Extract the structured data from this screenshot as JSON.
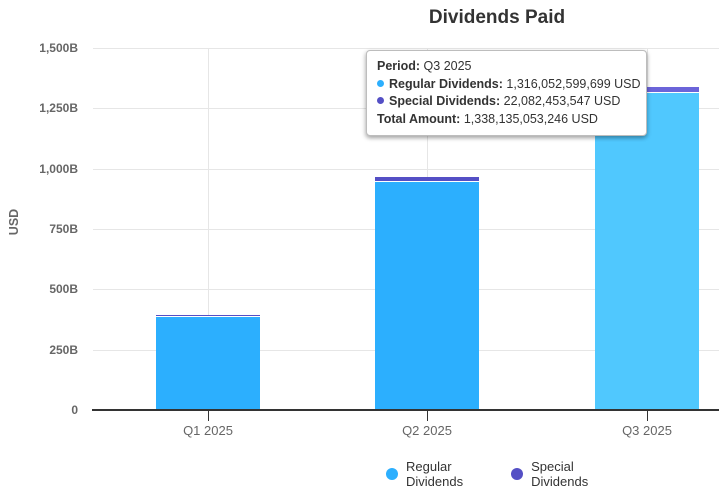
{
  "chart_data": {
    "type": "bar",
    "stacked": true,
    "title": "Dividends Paid",
    "xlabel": "",
    "ylabel": "USD",
    "categories": [
      "Q1 2025",
      "Q2 2025",
      "Q3 2025"
    ],
    "series": [
      {
        "name": "Regular Dividends",
        "color": "#2CAFFE",
        "values_billion_usd": [
          390,
          950,
          1316.05
        ]
      },
      {
        "name": "Special Dividends",
        "color": "#544FC5",
        "values_billion_usd": [
          2,
          14,
          22.08
        ]
      }
    ],
    "totals_billion_usd": [
      392,
      964,
      1338.14
    ],
    "ylim_billion_usd": [
      0,
      1500
    ],
    "ytick_labels_top_to_bottom": [
      "1,500B",
      "1,250B",
      "1,000B",
      "750B",
      "500B",
      "250B",
      "0"
    ],
    "grid": true,
    "legend_position": "bottom"
  },
  "hover": {
    "category": "Q3 2025",
    "category_index": 2
  },
  "tooltip": {
    "period_label": "Period:",
    "period_value": "Q3 2025",
    "rows": [
      {
        "label": "Regular Dividends:",
        "value": "1,316,052,599,699 USD",
        "bullet_color": "#2CAFFE"
      },
      {
        "label": "Special Dividends:",
        "value": "22,082,453,547 USD",
        "bullet_color": "#544FC5"
      }
    ],
    "total_label": "Total Amount:",
    "total_value": "1,338,135,053,246 USD"
  },
  "colors": {
    "regular": "#2CAFFE",
    "special": "#544FC5",
    "regular_hover": "#50C8FE",
    "special_hover": "#6B64D9",
    "grid": "#E6E6E6",
    "axis_line": "#333333",
    "title_text": "#333333",
    "axis_label": "#666666",
    "legend_text": "#333333"
  }
}
